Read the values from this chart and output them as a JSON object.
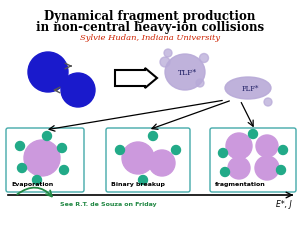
{
  "title_line1": "Dynamical fragment production",
  "title_line2": "in non-central heavy-ion collisions",
  "subtitle": "Sylvie Hudan, Indiana University",
  "subtitle_color": "#cc2200",
  "title_color": "#000000",
  "bg_color": "#ffffff",
  "tlf_label": "TLF*",
  "plf_label": "PLF*",
  "box1_label": "Evaporation",
  "box2_label": "Binary breakup",
  "box3_label": "fragmentation",
  "bottom_text": "See R.T. de Souza on Friday",
  "axis_label": "E*, J",
  "dark_blue": "#1a1acc",
  "light_purple": "#b8aad8",
  "medium_purple": "#cc99dd",
  "teal": "#22aa88",
  "box_border": "#44aaaa"
}
